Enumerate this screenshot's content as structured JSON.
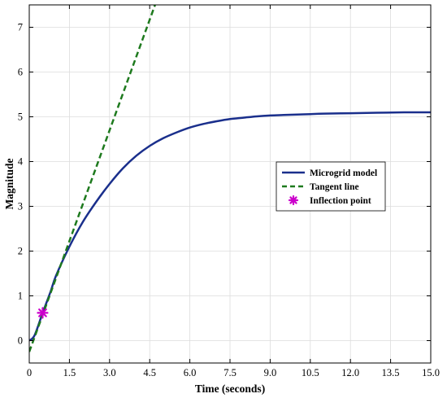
{
  "chart_data": {
    "type": "line",
    "title": "",
    "xlabel": "Time (seconds)",
    "ylabel": "Magnitude",
    "xlim": [
      0,
      15
    ],
    "ylim": [
      -0.5,
      7.5
    ],
    "xticks": [
      0,
      1.5,
      3.0,
      4.5,
      6.0,
      7.5,
      9.0,
      10.5,
      12.0,
      13.5,
      15.0
    ],
    "xtick_labels": [
      "0",
      "1.5",
      "3.0",
      "4.5",
      "6.0",
      "7.5",
      "9.0",
      "10.5",
      "12.0",
      "13.5",
      "15.0"
    ],
    "yticks": [
      0,
      1,
      2,
      3,
      4,
      5,
      6,
      7
    ],
    "ytick_labels": [
      "0",
      "1",
      "2",
      "3",
      "4",
      "5",
      "6",
      "7"
    ],
    "grid": true,
    "legend_position": "right",
    "series": [
      {
        "name": "Microgrid model",
        "style": "solid",
        "color": "#1a2f8c",
        "x": [
          0,
          0.2,
          0.5,
          0.8,
          1.0,
          1.5,
          2.0,
          2.5,
          3.0,
          3.5,
          4.0,
          4.5,
          5.0,
          5.5,
          6.0,
          6.5,
          7.0,
          7.5,
          8.0,
          8.5,
          9.0,
          9.5,
          10.0,
          10.5,
          11.0,
          12.0,
          13.0,
          14.0,
          15.0
        ],
        "y": [
          0,
          0.12,
          0.62,
          1.1,
          1.45,
          2.1,
          2.65,
          3.1,
          3.5,
          3.85,
          4.13,
          4.35,
          4.52,
          4.65,
          4.76,
          4.84,
          4.9,
          4.95,
          4.98,
          5.01,
          5.03,
          5.04,
          5.05,
          5.06,
          5.07,
          5.08,
          5.09,
          5.1,
          5.1
        ]
      },
      {
        "name": "Tangent line",
        "style": "dashed",
        "color": "#1e7a1e",
        "x": [
          0,
          4.7
        ],
        "y": [
          -0.25,
          7.5
        ]
      },
      {
        "name": "Inflection point",
        "style": "marker",
        "color": "#cc00cc",
        "x": [
          0.5
        ],
        "y": [
          0.62
        ]
      }
    ]
  }
}
